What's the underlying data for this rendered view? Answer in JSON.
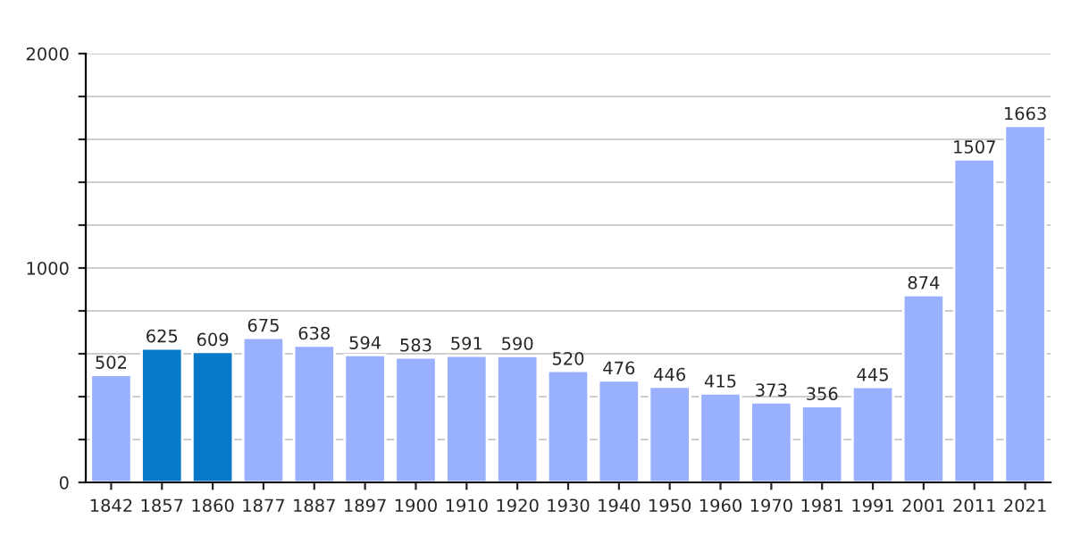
{
  "chart_data": {
    "type": "bar",
    "categories": [
      "1842",
      "1857",
      "1860",
      "1877",
      "1887",
      "1897",
      "1900",
      "1910",
      "1920",
      "1930",
      "1940",
      "1950",
      "1960",
      "1970",
      "1981",
      "1991",
      "2001",
      "2011",
      "2021"
    ],
    "values": [
      502,
      625,
      609,
      675,
      638,
      594,
      583,
      591,
      590,
      520,
      476,
      446,
      415,
      373,
      356,
      445,
      874,
      1507,
      1663
    ],
    "colors": [
      "#99b0ff",
      "#0878c8",
      "#0878c8",
      "#99b0ff",
      "#99b0ff",
      "#99b0ff",
      "#99b0ff",
      "#99b0ff",
      "#99b0ff",
      "#99b0ff",
      "#99b0ff",
      "#99b0ff",
      "#99b0ff",
      "#99b0ff",
      "#99b0ff",
      "#99b0ff",
      "#99b0ff",
      "#99b0ff",
      "#99b0ff"
    ],
    "ylim": [
      0,
      2000
    ],
    "yticks": [
      0,
      {
        "value": 200,
        "label": null
      },
      {
        "value": 400,
        "label": null
      },
      {
        "value": 600,
        "label": null
      },
      {
        "value": 800,
        "label": null
      },
      1000,
      {
        "value": 1200,
        "label": null
      },
      {
        "value": 1400,
        "label": null
      },
      {
        "value": 1600,
        "label": null
      },
      {
        "value": 1800,
        "label": null
      },
      2000
    ],
    "grid": "y",
    "data_labels": true
  }
}
